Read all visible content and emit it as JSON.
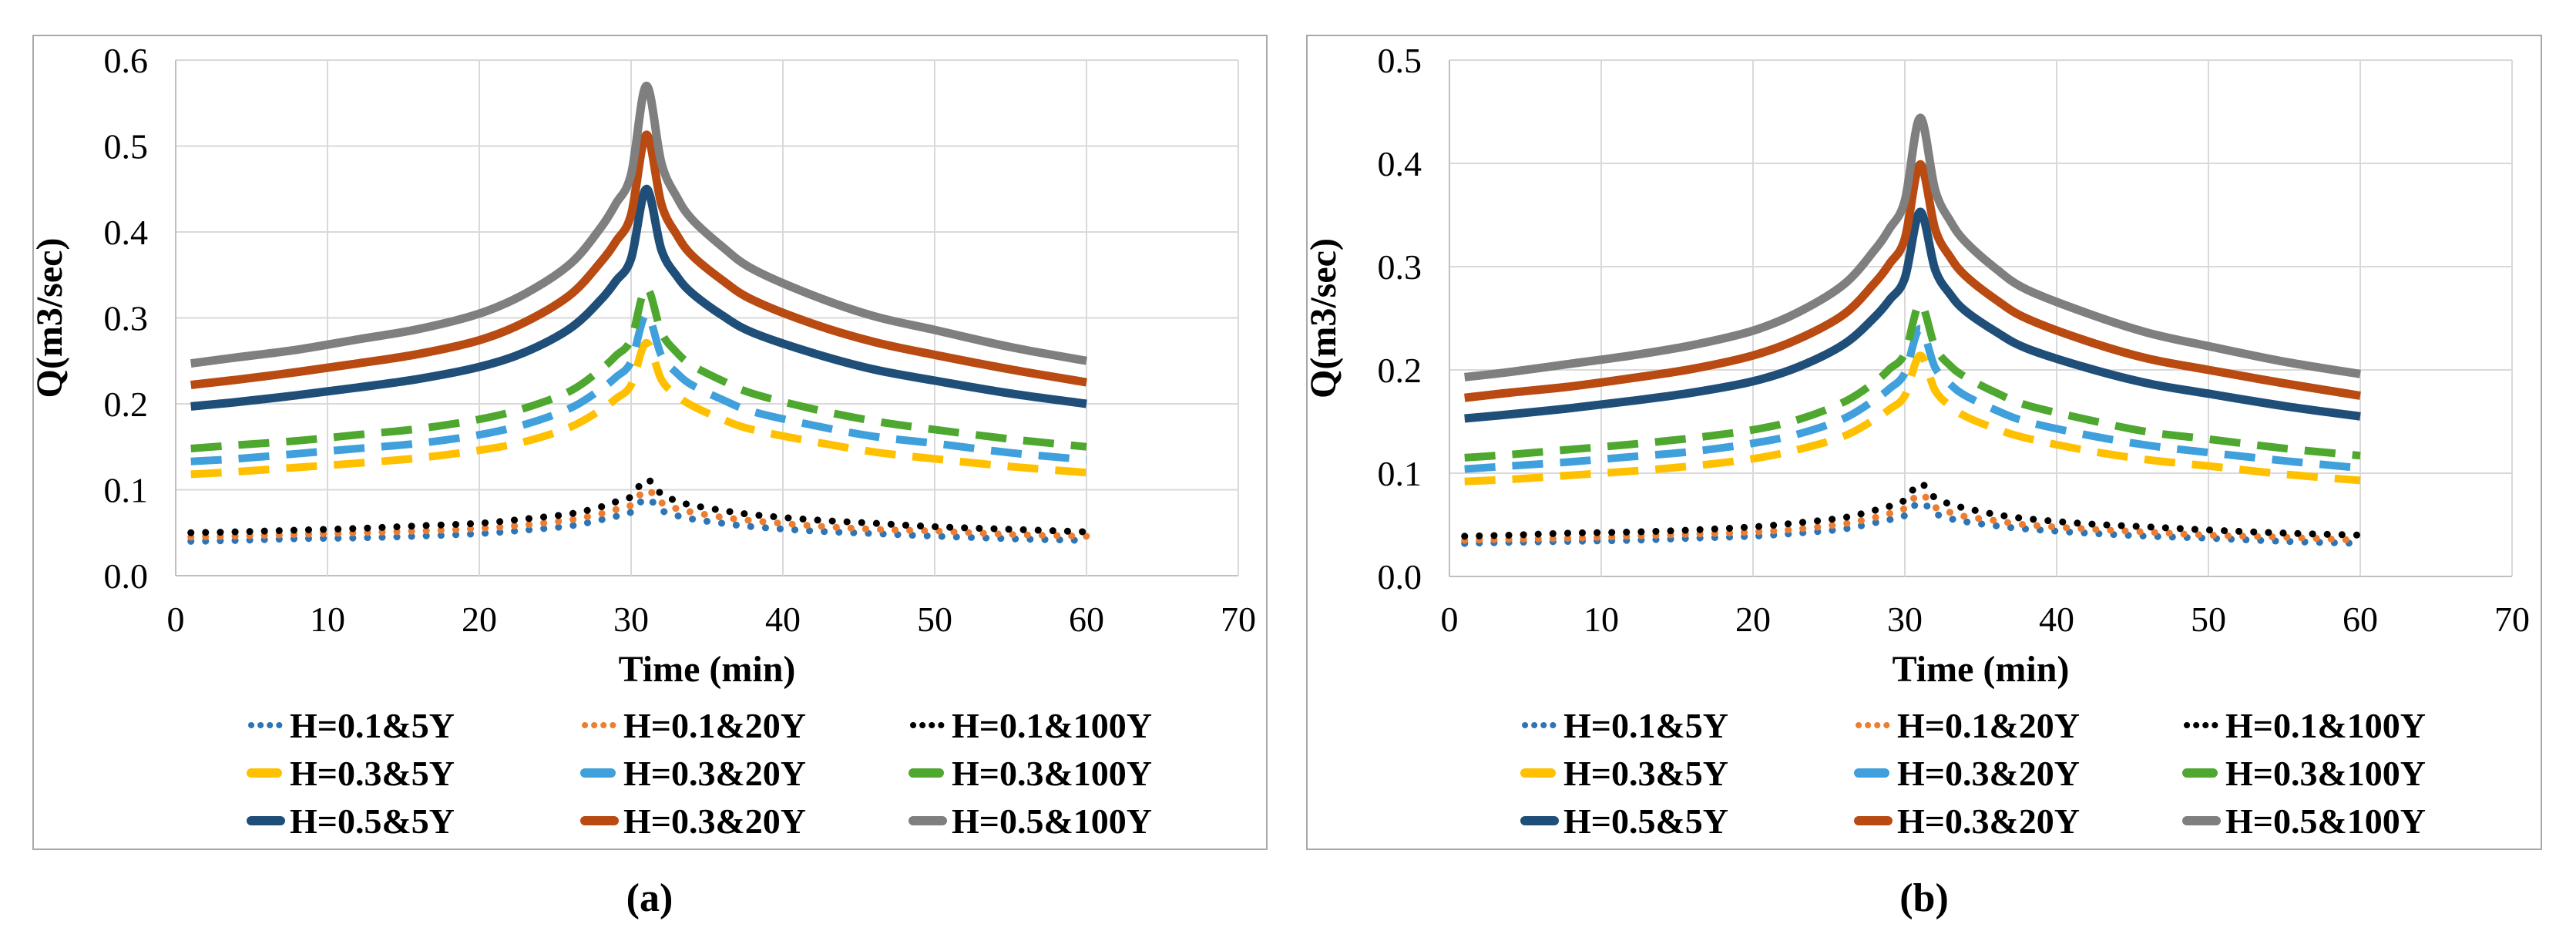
{
  "figure_title": "",
  "chart_data": [
    {
      "type": "line",
      "caption": "(a)",
      "x_title": "Time (min)",
      "y_title": "Q(m3/sec)",
      "xlim": [
        0,
        70
      ],
      "ylim": [
        0,
        0.6
      ],
      "x_ticks": [
        "0",
        "10",
        "20",
        "30",
        "40",
        "50",
        "60",
        "70"
      ],
      "y_ticks": [
        "0.0",
        "0.1",
        "0.2",
        "0.3",
        "0.4",
        "0.5",
        "0.6"
      ],
      "grid": true,
      "legend_position": "bottom",
      "x": [
        1,
        4,
        8,
        12,
        16,
        20,
        23,
        26,
        28,
        29,
        30,
        31,
        32,
        33,
        34,
        36,
        38,
        42,
        46,
        50,
        55,
        60
      ],
      "series": [
        {
          "label": "H=0.1&5Y",
          "color": "#2E75B6",
          "style": "dotted",
          "values": [
            0.04,
            0.041,
            0.043,
            0.044,
            0.046,
            0.049,
            0.053,
            0.058,
            0.065,
            0.069,
            0.074,
            0.09,
            0.076,
            0.07,
            0.066,
            0.061,
            0.057,
            0.052,
            0.049,
            0.046,
            0.043,
            0.041
          ]
        },
        {
          "label": "H=0.1&20Y",
          "color": "#ED7D31",
          "style": "dotted",
          "values": [
            0.045,
            0.046,
            0.048,
            0.05,
            0.052,
            0.055,
            0.059,
            0.065,
            0.072,
            0.077,
            0.082,
            0.1,
            0.085,
            0.078,
            0.074,
            0.068,
            0.064,
            0.058,
            0.054,
            0.052,
            0.048,
            0.046
          ]
        },
        {
          "label": "H=0.1&100Y",
          "color": "#000000",
          "style": "dotted",
          "values": [
            0.05,
            0.051,
            0.053,
            0.055,
            0.058,
            0.061,
            0.066,
            0.072,
            0.08,
            0.086,
            0.092,
            0.112,
            0.095,
            0.087,
            0.082,
            0.076,
            0.071,
            0.065,
            0.061,
            0.057,
            0.054,
            0.051
          ]
        },
        {
          "label": "H=0.3&5Y",
          "color": "#FFC000",
          "style": "dashed",
          "values": [
            0.118,
            0.121,
            0.126,
            0.131,
            0.137,
            0.146,
            0.156,
            0.173,
            0.193,
            0.206,
            0.222,
            0.271,
            0.228,
            0.21,
            0.198,
            0.182,
            0.17,
            0.156,
            0.144,
            0.136,
            0.127,
            0.12
          ]
        },
        {
          "label": "H=0.3&20Y",
          "color": "#3FA0DC",
          "style": "dashed",
          "values": [
            0.133,
            0.136,
            0.142,
            0.148,
            0.154,
            0.164,
            0.176,
            0.195,
            0.217,
            0.231,
            0.249,
            0.304,
            0.256,
            0.236,
            0.222,
            0.205,
            0.191,
            0.175,
            0.162,
            0.154,
            0.143,
            0.135
          ]
        },
        {
          "label": "H=0.3&100Y",
          "color": "#4EA72E",
          "style": "dashed",
          "values": [
            0.148,
            0.152,
            0.157,
            0.164,
            0.171,
            0.182,
            0.195,
            0.215,
            0.24,
            0.256,
            0.275,
            0.335,
            0.283,
            0.26,
            0.245,
            0.227,
            0.212,
            0.194,
            0.18,
            0.17,
            0.159,
            0.15
          ]
        },
        {
          "label": "H=0.5&5Y",
          "color": "#1F4E79",
          "style": "solid",
          "values": [
            0.197,
            0.202,
            0.21,
            0.219,
            0.229,
            0.243,
            0.26,
            0.288,
            0.321,
            0.343,
            0.369,
            0.45,
            0.379,
            0.349,
            0.329,
            0.303,
            0.283,
            0.259,
            0.24,
            0.227,
            0.212,
            0.2
          ]
        },
        {
          "label": "H=0.3&20Y",
          "color": "#B84A12",
          "style": "solid",
          "values": [
            0.222,
            0.228,
            0.237,
            0.247,
            0.258,
            0.274,
            0.295,
            0.327,
            0.365,
            0.389,
            0.42,
            0.513,
            0.432,
            0.397,
            0.373,
            0.344,
            0.321,
            0.293,
            0.272,
            0.257,
            0.24,
            0.225
          ]
        },
        {
          "label": "H=0.5&100Y",
          "color": "#7F7F7F",
          "style": "solid",
          "values": [
            0.247,
            0.254,
            0.263,
            0.275,
            0.287,
            0.305,
            0.328,
            0.363,
            0.405,
            0.433,
            0.467,
            0.57,
            0.48,
            0.441,
            0.415,
            0.383,
            0.357,
            0.326,
            0.302,
            0.286,
            0.266,
            0.25
          ]
        }
      ]
    },
    {
      "type": "line",
      "caption": "(b)",
      "x_title": "Time (min)",
      "y_title": "Q(m3/sec)",
      "xlim": [
        0,
        70
      ],
      "ylim": [
        0,
        0.5
      ],
      "x_ticks": [
        "0",
        "10",
        "20",
        "30",
        "40",
        "50",
        "60",
        "70"
      ],
      "y_ticks": [
        "0.0",
        "0.1",
        "0.2",
        "0.3",
        "0.4",
        "0.5"
      ],
      "grid": true,
      "legend_position": "bottom",
      "x": [
        1,
        4,
        8,
        12,
        16,
        20,
        23,
        26,
        28,
        29,
        30,
        31,
        32,
        33,
        34,
        36,
        38,
        42,
        46,
        50,
        55,
        60
      ],
      "series": [
        {
          "label": "H=0.1&5Y",
          "color": "#2E75B6",
          "style": "dotted",
          "values": [
            0.032,
            0.033,
            0.034,
            0.035,
            0.037,
            0.039,
            0.042,
            0.046,
            0.052,
            0.055,
            0.059,
            0.072,
            0.061,
            0.056,
            0.053,
            0.049,
            0.046,
            0.042,
            0.039,
            0.037,
            0.034,
            0.032
          ]
        },
        {
          "label": "H=0.1&20Y",
          "color": "#ED7D31",
          "style": "dotted",
          "values": [
            0.035,
            0.036,
            0.037,
            0.039,
            0.041,
            0.043,
            0.046,
            0.051,
            0.057,
            0.061,
            0.066,
            0.08,
            0.067,
            0.062,
            0.058,
            0.054,
            0.05,
            0.046,
            0.043,
            0.04,
            0.038,
            0.035
          ]
        },
        {
          "label": "H=0.1&100Y",
          "color": "#000000",
          "style": "dotted",
          "values": [
            0.039,
            0.04,
            0.042,
            0.043,
            0.045,
            0.048,
            0.052,
            0.057,
            0.064,
            0.068,
            0.074,
            0.09,
            0.076,
            0.07,
            0.066,
            0.06,
            0.056,
            0.051,
            0.048,
            0.045,
            0.042,
            0.04
          ]
        },
        {
          "label": "H=0.3&5Y",
          "color": "#FFC000",
          "style": "dashed",
          "values": [
            0.092,
            0.094,
            0.098,
            0.102,
            0.107,
            0.114,
            0.123,
            0.136,
            0.152,
            0.162,
            0.175,
            0.214,
            0.18,
            0.165,
            0.155,
            0.143,
            0.134,
            0.122,
            0.113,
            0.107,
            0.099,
            0.093
          ]
        },
        {
          "label": "H=0.3&20Y",
          "color": "#3FA0DC",
          "style": "dashed",
          "values": [
            0.104,
            0.107,
            0.111,
            0.116,
            0.121,
            0.129,
            0.138,
            0.153,
            0.171,
            0.182,
            0.197,
            0.24,
            0.202,
            0.186,
            0.175,
            0.161,
            0.15,
            0.137,
            0.127,
            0.12,
            0.112,
            0.105
          ]
        },
        {
          "label": "H=0.3&100Y",
          "color": "#4EA72E",
          "style": "dashed",
          "values": [
            0.115,
            0.118,
            0.123,
            0.128,
            0.134,
            0.142,
            0.152,
            0.169,
            0.188,
            0.201,
            0.216,
            0.264,
            0.222,
            0.204,
            0.193,
            0.178,
            0.166,
            0.152,
            0.14,
            0.133,
            0.124,
            0.117
          ]
        },
        {
          "label": "H=0.5&5Y",
          "color": "#1F4E79",
          "style": "solid",
          "values": [
            0.153,
            0.157,
            0.163,
            0.17,
            0.178,
            0.189,
            0.203,
            0.225,
            0.251,
            0.268,
            0.289,
            0.353,
            0.297,
            0.273,
            0.257,
            0.237,
            0.221,
            0.202,
            0.187,
            0.177,
            0.165,
            0.155
          ]
        },
        {
          "label": "H=0.3&20Y",
          "color": "#B84A12",
          "style": "solid",
          "values": [
            0.173,
            0.178,
            0.184,
            0.192,
            0.201,
            0.214,
            0.23,
            0.254,
            0.284,
            0.303,
            0.327,
            0.399,
            0.336,
            0.309,
            0.291,
            0.268,
            0.25,
            0.228,
            0.211,
            0.2,
            0.187,
            0.175
          ]
        },
        {
          "label": "H=0.5&100Y",
          "color": "#7F7F7F",
          "style": "solid",
          "values": [
            0.193,
            0.198,
            0.206,
            0.214,
            0.224,
            0.238,
            0.256,
            0.283,
            0.316,
            0.337,
            0.364,
            0.444,
            0.374,
            0.344,
            0.324,
            0.298,
            0.278,
            0.255,
            0.236,
            0.223,
            0.208,
            0.196
          ]
        }
      ]
    }
  ],
  "style_colors": {
    "panel_border": "#A9A9A9",
    "gridline": "#D9D9D9",
    "axis_line": "#BFBFBF",
    "text": "#000000"
  }
}
